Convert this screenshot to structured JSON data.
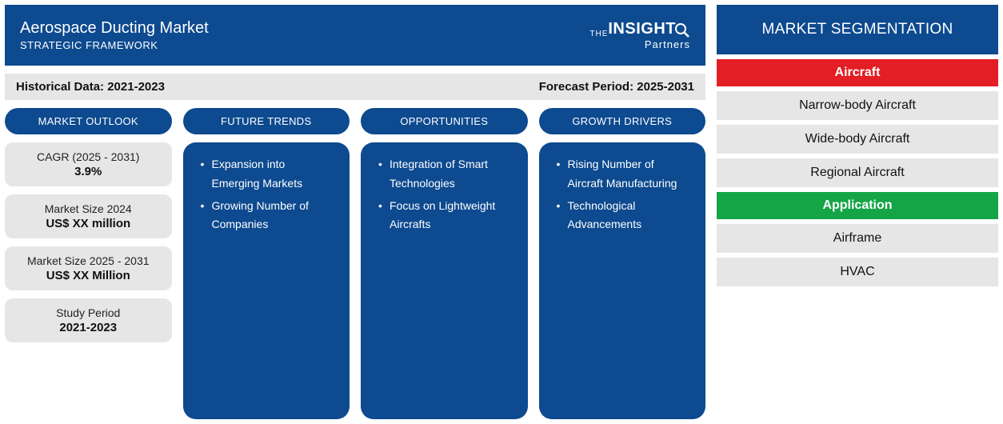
{
  "colors": {
    "primary": "#0d4a8f",
    "grey": "#e6e6e6",
    "red": "#e31e24",
    "green": "#15a547",
    "white": "#ffffff"
  },
  "header": {
    "title": "Aerospace Ducting Market",
    "subtitle": "STRATEGIC FRAMEWORK",
    "logo_the": "THE",
    "logo_insight": "INSIGHT",
    "logo_partners": "Partners"
  },
  "period": {
    "historical": "Historical Data: 2021-2023",
    "forecast": "Forecast Period: 2025-2031"
  },
  "outlook": {
    "heading": "MARKET OUTLOOK",
    "stats": [
      {
        "label": "CAGR (2025 - 2031)",
        "value": "3.9%"
      },
      {
        "label": "Market Size 2024",
        "value": "US$ XX million"
      },
      {
        "label": "Market Size 2025 - 2031",
        "value": "US$ XX Million"
      },
      {
        "label": "Study Period",
        "value": "2021-2023"
      }
    ]
  },
  "trends": {
    "heading": "FUTURE TRENDS",
    "items": [
      "Expansion into Emerging Markets",
      "Growing Number of Companies"
    ]
  },
  "opportunities": {
    "heading": "OPPORTUNITIES",
    "items": [
      "Integration of Smart Technologies",
      "Focus on Lightweight Aircrafts"
    ]
  },
  "drivers": {
    "heading": "GROWTH DRIVERS",
    "items": [
      "Rising Number of Aircraft Manufacturing",
      "Technological Advancements"
    ]
  },
  "segmentation": {
    "heading": "MARKET SEGMENTATION",
    "groups": [
      {
        "name": "Aircraft",
        "color": "red",
        "items": [
          "Narrow-body Aircraft",
          "Wide-body Aircraft",
          "Regional Aircraft"
        ]
      },
      {
        "name": "Application",
        "color": "green",
        "items": [
          "Airframe",
          "HVAC"
        ]
      }
    ]
  }
}
